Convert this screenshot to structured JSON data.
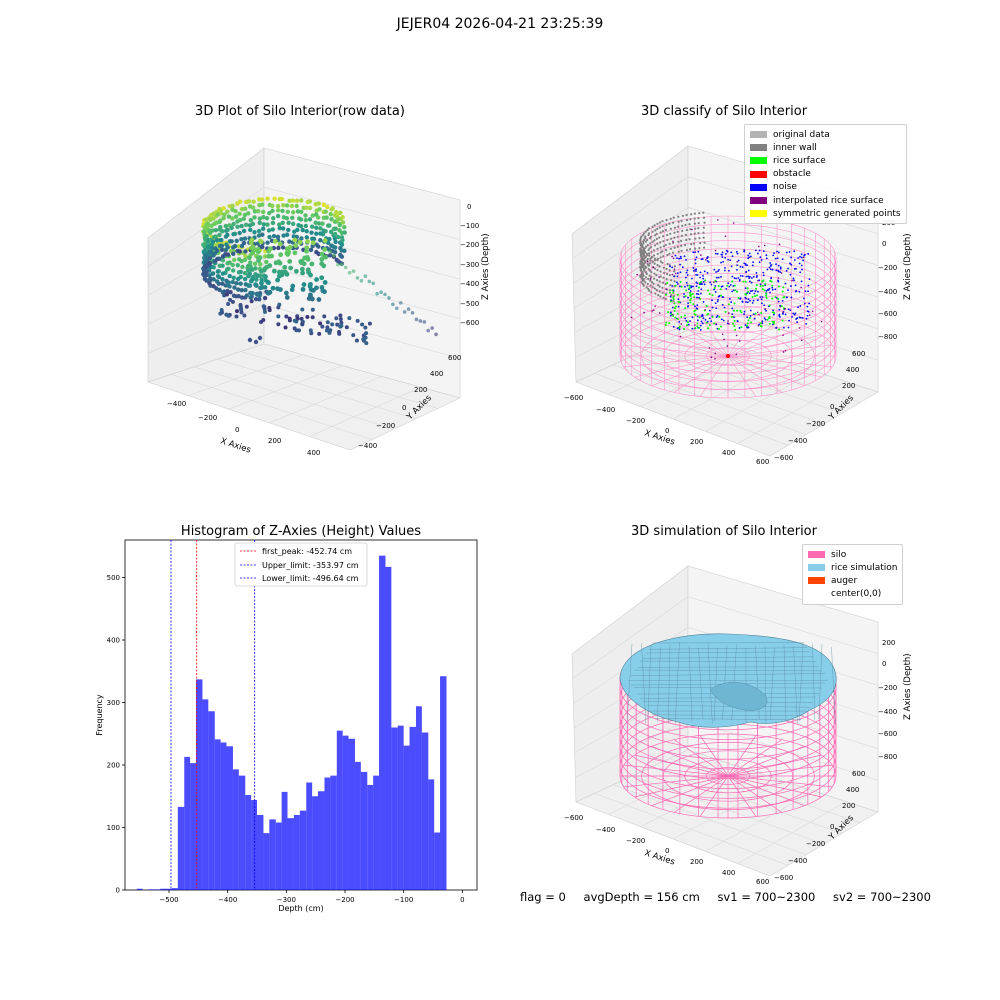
{
  "page": {
    "title": "JEJER04 2026-04-21 23:25:39"
  },
  "plots": {
    "raw": {
      "title": "3D Plot of Silo Interior(row data)",
      "xlabel": "X Axies",
      "ylabel": "Y Axies",
      "zlabel": "Z Axies (Depth)",
      "xticks": [
        "−400",
        "−200",
        "0",
        "200",
        "400"
      ],
      "yticks": [
        "−400",
        "−200",
        "0",
        "200",
        "400",
        "600"
      ],
      "zticks": [
        "0",
        "−100",
        "−200",
        "−300",
        "−400",
        "−500",
        "−600"
      ]
    },
    "classify": {
      "title": "3D classify of Silo Interior",
      "xlabel": "X Axies",
      "ylabel": "Y Axies",
      "zlabel": "Z Axies (Depth)",
      "xticks": [
        "−600",
        "−400",
        "−200",
        "0",
        "200",
        "400",
        "600"
      ],
      "yticks": [
        "−600",
        "−400",
        "−200",
        "0",
        "200",
        "400",
        "600"
      ],
      "zticks": [
        "200",
        "0",
        "−200",
        "−400",
        "−600",
        "−800"
      ],
      "legend": [
        {
          "label": "original data",
          "color": "#b3b3b3"
        },
        {
          "label": "inner wall",
          "color": "#808080"
        },
        {
          "label": "rice surface",
          "color": "#00ff00"
        },
        {
          "label": "obstacle",
          "color": "#ff0000"
        },
        {
          "label": "noise",
          "color": "#0000ff"
        },
        {
          "label": "interpolated rice surface",
          "color": "#800080"
        },
        {
          "label": "symmetric generated points",
          "color": "#ffff00"
        }
      ]
    },
    "simulation": {
      "title": "3D simulation of Silo Interior",
      "xlabel": "X Axies",
      "ylabel": "Y Axies",
      "zlabel": "Z Axies (Depth)",
      "xticks": [
        "−600",
        "−400",
        "−200",
        "0",
        "200",
        "400",
        "600"
      ],
      "yticks": [
        "−600",
        "−400",
        "−200",
        "0",
        "200",
        "400",
        "600"
      ],
      "zticks": [
        "200",
        "0",
        "−200",
        "−400",
        "−600",
        "−800"
      ],
      "legend": [
        {
          "label": "silo",
          "color": "#ff69b4"
        },
        {
          "label": "rice simulation",
          "color": "#87ceeb"
        },
        {
          "label": "auger",
          "color": "#ff4500"
        },
        {
          "label": "center(0,0)",
          "color": "#ffffff"
        }
      ]
    }
  },
  "chart_data": [
    {
      "type": "bar",
      "title": "Histogram of Z-Axies (Height) Values",
      "xlabel": "Depth (cm)",
      "ylabel": "Frequency",
      "xlim": [
        -575,
        25
      ],
      "ylim": [
        0,
        560
      ],
      "xticks": [
        -500,
        -400,
        -300,
        -200,
        -100,
        0
      ],
      "xtick_labels": [
        "−500",
        "−400",
        "−300",
        "−200",
        "−100",
        "0"
      ],
      "yticks": [
        0,
        100,
        200,
        300,
        400,
        500
      ],
      "bar_color": "#0000ff",
      "bins": [
        [
          -555,
          -545,
          2
        ],
        [
          -545,
          -535,
          0
        ],
        [
          -535,
          -525,
          1
        ],
        [
          -525,
          -515,
          1
        ],
        [
          -515,
          -505,
          2
        ],
        [
          -505,
          -495,
          2
        ],
        [
          -495,
          -485,
          3
        ],
        [
          -485,
          -474,
          133
        ],
        [
          -474,
          -464,
          213
        ],
        [
          -464,
          -454,
          203
        ],
        [
          -454,
          -443,
          337
        ],
        [
          -443,
          -433,
          305
        ],
        [
          -433,
          -422,
          286
        ],
        [
          -422,
          -412,
          241
        ],
        [
          -412,
          -402,
          236
        ],
        [
          -402,
          -391,
          230
        ],
        [
          -391,
          -381,
          193
        ],
        [
          -381,
          -370,
          183
        ],
        [
          -370,
          -360,
          152
        ],
        [
          -360,
          -350,
          144
        ],
        [
          -350,
          -339,
          120
        ],
        [
          -339,
          -329,
          91
        ],
        [
          -329,
          -318,
          113
        ],
        [
          -318,
          -308,
          108
        ],
        [
          -308,
          -298,
          157
        ],
        [
          -298,
          -287,
          115
        ],
        [
          -287,
          -277,
          120
        ],
        [
          -277,
          -266,
          127
        ],
        [
          -266,
          -256,
          172
        ],
        [
          -256,
          -246,
          150
        ],
        [
          -246,
          -235,
          158
        ],
        [
          -235,
          -225,
          180
        ],
        [
          -225,
          -214,
          183
        ],
        [
          -214,
          -204,
          255
        ],
        [
          -204,
          -194,
          247
        ],
        [
          -194,
          -183,
          242
        ],
        [
          -183,
          -173,
          205
        ],
        [
          -173,
          -162,
          189
        ],
        [
          -162,
          -152,
          168
        ],
        [
          -152,
          -142,
          183
        ],
        [
          -142,
          -131,
          535
        ],
        [
          -131,
          -121,
          517
        ],
        [
          -121,
          -110,
          260
        ],
        [
          -110,
          -100,
          263
        ],
        [
          -100,
          -90,
          231
        ],
        [
          -90,
          -79,
          261
        ],
        [
          -79,
          -69,
          294
        ],
        [
          -69,
          -58,
          252
        ],
        [
          -58,
          -48,
          177
        ],
        [
          -48,
          -38,
          92
        ],
        [
          -38,
          -27,
          342
        ]
      ],
      "reference_lines": [
        {
          "label": "first_peak: -452.74 cm",
          "value": -452.74,
          "color": "#ff0000"
        },
        {
          "label": "Upper_limit: -353.97 cm",
          "value": -353.97,
          "color": "#0000ff"
        },
        {
          "label": "Lower_limit: -496.64 cm",
          "value": -496.64,
          "color": "#0000ff"
        }
      ]
    }
  ],
  "footer": {
    "flag": "flag = 0",
    "avg_depth": "avgDepth = 156 cm",
    "sv1": "sv1 = 700~2300",
    "sv2": "sv2 = 700~2300"
  }
}
